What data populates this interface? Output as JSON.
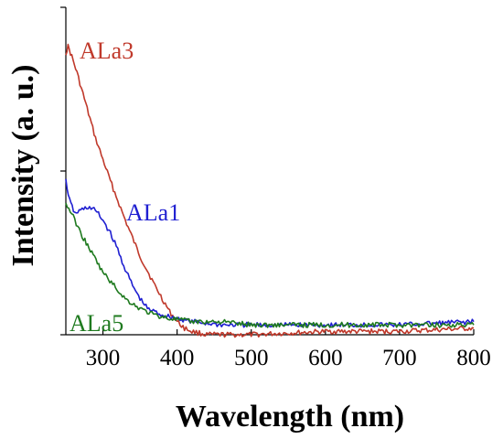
{
  "chart_data": {
    "type": "line",
    "xlabel": "Wavelength (nm)",
    "ylabel": "Intensity (a. u.)",
    "xlim": [
      250,
      800
    ],
    "ylim": [
      0,
      1.0
    ],
    "x_ticks": [
      300,
      400,
      500,
      600,
      700,
      800
    ],
    "y_ticks": [
      0,
      0.5,
      1.0
    ],
    "y_tick_labels_visible": false,
    "grid": false,
    "legend": "inline labels",
    "series": [
      {
        "name": "ALa3",
        "color": "#c0392b",
        "x": [
          250,
          253,
          258,
          265,
          275,
          290,
          310,
          330,
          350,
          370,
          390,
          400,
          410,
          420,
          440,
          500,
          600,
          700,
          800
        ],
        "y": [
          0.86,
          0.88,
          0.85,
          0.8,
          0.72,
          0.6,
          0.47,
          0.35,
          0.24,
          0.15,
          0.07,
          0.04,
          0.02,
          0.01,
          0.0,
          0.0,
          0.01,
          0.01,
          0.02
        ]
      },
      {
        "name": "ALa1",
        "color": "#1f1fd1",
        "x": [
          250,
          255,
          262,
          270,
          280,
          290,
          300,
          310,
          320,
          330,
          340,
          350,
          360,
          380,
          420,
          460,
          500,
          600,
          700,
          800
        ],
        "y": [
          0.47,
          0.41,
          0.37,
          0.38,
          0.39,
          0.38,
          0.35,
          0.31,
          0.26,
          0.2,
          0.15,
          0.11,
          0.08,
          0.06,
          0.04,
          0.03,
          0.03,
          0.03,
          0.03,
          0.04
        ]
      },
      {
        "name": "ALa5",
        "color": "#1f7a1f",
        "x": [
          250,
          258,
          270,
          285,
          300,
          315,
          330,
          350,
          370,
          390,
          420,
          460,
          500,
          600,
          700,
          800
        ],
        "y": [
          0.4,
          0.37,
          0.31,
          0.25,
          0.19,
          0.15,
          0.11,
          0.08,
          0.06,
          0.05,
          0.04,
          0.04,
          0.03,
          0.03,
          0.03,
          0.03
        ]
      }
    ]
  }
}
